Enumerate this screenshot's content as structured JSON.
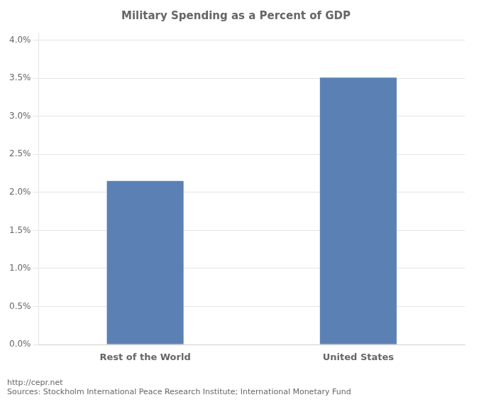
{
  "chart_data": {
    "type": "bar",
    "title": "Military Spending as a Percent of GDP",
    "categories": [
      "Rest of the World",
      "United States"
    ],
    "values": [
      0.0215,
      0.0351
    ],
    "color": "#5b80b4",
    "ylim": [
      0.0,
      0.041
    ],
    "yticks": [
      {
        "value": 0.0,
        "label": "0.0%"
      },
      {
        "value": 0.005,
        "label": "0.5%"
      },
      {
        "value": 0.01,
        "label": "1.0%"
      },
      {
        "value": 0.015,
        "label": "1.5%"
      },
      {
        "value": 0.02,
        "label": "2.0%"
      },
      {
        "value": 0.025,
        "label": "2.5%"
      },
      {
        "value": 0.03,
        "label": "3.0%"
      },
      {
        "value": 0.035,
        "label": "3.5%"
      },
      {
        "value": 0.04,
        "label": "4.0%"
      }
    ],
    "grid": true,
    "annotations": [
      "http://cepr.net",
      "Sources: Stockholm International Peace Research Institute; International Monetary Fund"
    ]
  }
}
